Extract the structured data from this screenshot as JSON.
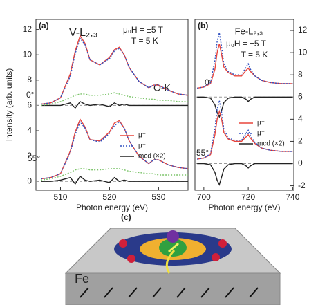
{
  "chart_data": [
    {
      "type": "line",
      "panel": "(a)",
      "xlabel": "Photon energy (eV)",
      "ylabel": "Intensity (arb. units)",
      "annotations": [
        "V-L₂,₃",
        "μ₀H = ±5 T",
        "T = 5 K",
        "O-K",
        "0°",
        "55°"
      ],
      "xlim": [
        505,
        536
      ],
      "xticks": [
        510,
        520,
        530
      ],
      "ylim": [
        -0.7,
        12.8
      ],
      "yticks": [
        0,
        2,
        4,
        6,
        8,
        10,
        12
      ],
      "baselines": [
        0,
        6
      ],
      "x": [
        506,
        508,
        510,
        512,
        513,
        514,
        515,
        516,
        518,
        520,
        521,
        522,
        523,
        524,
        526,
        528,
        529,
        530,
        532,
        534,
        536
      ],
      "series": [
        {
          "color": "#e8453c",
          "values": [
            6.1,
            6.2,
            6.6,
            8.5,
            10.3,
            11.5,
            10.9,
            9.6,
            9.2,
            9.8,
            10.4,
            10.6,
            10.0,
            9.0,
            7.9,
            7.4,
            7.6,
            7.6,
            7.2,
            6.9,
            6.8
          ]
        },
        {
          "color": "#3050c0",
          "style": "dotted",
          "values": [
            6.1,
            6.2,
            6.6,
            8.3,
            10.1,
            11.3,
            10.8,
            9.6,
            9.2,
            9.7,
            10.3,
            10.5,
            10.0,
            9.0,
            7.9,
            7.4,
            7.6,
            7.6,
            7.2,
            6.9,
            6.8
          ]
        },
        {
          "color": "#222222",
          "values": [
            6.0,
            6.0,
            6.0,
            6.2,
            5.8,
            6.3,
            6.1,
            6.0,
            6.1,
            5.9,
            6.2,
            6.0,
            6.1,
            6.0,
            6.0,
            6.0,
            6.0,
            6.0,
            6.0,
            6.0,
            6.0
          ]
        },
        {
          "color": "#7cc46a",
          "style": "dotted",
          "values": [
            6.0,
            6.1,
            6.3,
            6.6,
            6.8,
            6.9,
            6.9,
            6.8,
            6.8,
            6.9,
            7.0,
            6.9,
            6.8,
            6.7,
            6.6,
            6.5,
            6.5,
            6.4,
            6.4,
            6.3,
            6.3
          ]
        },
        {
          "name": "μ⁺",
          "color": "#e8453c",
          "values": [
            0.2,
            0.3,
            0.6,
            2.4,
            3.9,
            4.9,
            4.3,
            3.3,
            3.2,
            3.9,
            4.6,
            4.8,
            4.2,
            3.2,
            2.0,
            1.4,
            1.7,
            1.7,
            1.3,
            1.1,
            1.0
          ]
        },
        {
          "name": "μ⁻",
          "color": "#3050c0",
          "style": "dotted",
          "values": [
            0.2,
            0.3,
            0.6,
            2.3,
            3.7,
            4.7,
            4.2,
            3.3,
            3.1,
            3.8,
            4.4,
            4.7,
            4.2,
            3.2,
            2.0,
            1.4,
            1.7,
            1.7,
            1.3,
            1.1,
            1.0
          ]
        },
        {
          "name": "mcd (×2)",
          "color": "#222222",
          "values": [
            0,
            0,
            0.1,
            0.3,
            -0.2,
            0.4,
            0.1,
            0,
            0.1,
            -0.1,
            0.3,
            0,
            0.1,
            0,
            0,
            0,
            0,
            0,
            0,
            0,
            0
          ]
        },
        {
          "color": "#7cc46a",
          "style": "dotted",
          "values": [
            0.1,
            0.2,
            0.4,
            0.7,
            0.9,
            1.0,
            1.0,
            0.9,
            0.9,
            1.0,
            1.0,
            1.0,
            0.9,
            0.8,
            0.7,
            0.6,
            0.6,
            0.5,
            0.5,
            0.5,
            0.5
          ]
        }
      ]
    },
    {
      "type": "line",
      "panel": "(b)",
      "xlabel": "Photon energy (eV)",
      "annotations": [
        "Fe-L₂,₃",
        "μ₀H = ±5 T",
        "T = 5 K",
        "0°",
        "55°"
      ],
      "xlim": [
        696,
        740.5
      ],
      "xticks": [
        700,
        720,
        740
      ],
      "y2lim": [
        -2.4,
        13
      ],
      "y2ticks": [
        -2,
        0,
        2,
        4,
        6,
        8,
        10,
        12
      ],
      "baselines": [
        0,
        6
      ],
      "x": [
        697,
        700,
        703,
        705,
        706,
        707,
        708,
        709,
        711,
        714,
        717,
        719,
        720,
        721,
        723,
        726,
        730,
        735,
        740
      ],
      "series": [
        {
          "color": "#e8453c",
          "axis": "y2",
          "values": [
            6.8,
            6.9,
            7.2,
            8.5,
            10.0,
            10.8,
            9.8,
            8.7,
            8.2,
            7.9,
            7.9,
            8.4,
            8.6,
            8.3,
            7.9,
            7.5,
            7.3,
            7.2,
            7.2
          ]
        },
        {
          "color": "#3050c0",
          "axis": "y2",
          "style": "dotted",
          "values": [
            6.8,
            6.9,
            7.3,
            9.3,
            11.0,
            11.8,
            10.5,
            9.0,
            8.3,
            8.0,
            8.0,
            8.7,
            9.0,
            8.5,
            7.9,
            7.5,
            7.3,
            7.2,
            7.2
          ]
        },
        {
          "color": "#222222",
          "axis": "y2",
          "values": [
            6,
            6,
            5.9,
            5.3,
            4.6,
            4.2,
            4.8,
            5.5,
            5.9,
            6,
            6,
            5.8,
            5.6,
            5.8,
            6,
            6,
            6,
            6,
            6
          ]
        },
        {
          "name": "μ⁺",
          "color": "#e8453c",
          "axis": "y2",
          "values": [
            0.4,
            0.5,
            0.8,
            2.6,
            4.0,
            4.7,
            4.0,
            2.8,
            2.2,
            2.0,
            2.0,
            2.4,
            2.6,
            2.3,
            1.8,
            1.4,
            1.2,
            1.1,
            1.1
          ]
        },
        {
          "name": "μ⁻",
          "color": "#3050c0",
          "axis": "y2",
          "style": "dotted",
          "values": [
            0.4,
            0.5,
            0.9,
            3.2,
            4.9,
            5.7,
            4.6,
            3.1,
            2.3,
            2.1,
            2.1,
            2.7,
            3.0,
            2.5,
            1.9,
            1.4,
            1.2,
            1.1,
            1.1
          ]
        },
        {
          "name": "mcd (×2)",
          "color": "#222222",
          "axis": "y2",
          "values": [
            0,
            0,
            -0.1,
            -0.8,
            -1.5,
            -1.9,
            -1.2,
            -0.5,
            -0.1,
            0,
            0,
            -0.2,
            -0.4,
            -0.2,
            0,
            0,
            0,
            0,
            0
          ]
        }
      ]
    }
  ],
  "diagram": {
    "panel": "(c)",
    "label": "Fe"
  }
}
